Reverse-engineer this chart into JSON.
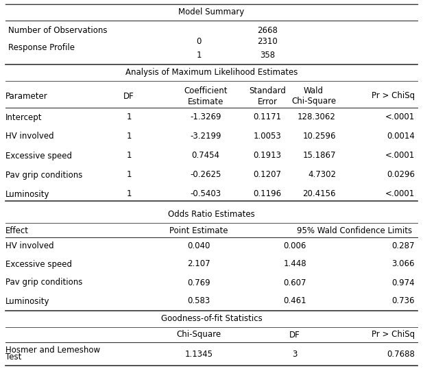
{
  "title": "Model Summary",
  "num_obs_label": "Number of Observations",
  "num_obs_val": "2668",
  "resp_profile_label": "Response Profile",
  "resp_row0_key": "0",
  "resp_row0_val": "2310",
  "resp_row1_key": "1",
  "resp_row1_val": "358",
  "section2_title": "Analysis of Maximum Likelihood Estimates",
  "section2_headers": [
    "Parameter",
    "DF",
    "Coefficient\nEstimate",
    "Standard\nError",
    "Wald\nChi-Square",
    "Pr > ChiSq"
  ],
  "section2_rows": [
    [
      "Intercept",
      "1",
      "-1.3269",
      "0.1171",
      "128.3062",
      "<.0001"
    ],
    [
      "HV involved",
      "1",
      "-3.2199",
      "1.0053",
      "10.2596",
      "0.0014"
    ],
    [
      "Excessive speed",
      "1",
      "0.7454",
      "0.1913",
      "15.1867",
      "<.0001"
    ],
    [
      "Pav grip conditions",
      "1",
      "-0.2625",
      "0.1207",
      "4.7302",
      "0.0296"
    ],
    [
      "Luminosity",
      "1",
      "-0.5403",
      "0.1196",
      "20.4156",
      "<.0001"
    ]
  ],
  "section3_title": "Odds Ratio Estimates",
  "section3_rows": [
    [
      "HV involved",
      "0.040",
      "0.006",
      "0.287"
    ],
    [
      "Excessive speed",
      "2.107",
      "1.448",
      "3.066"
    ],
    [
      "Pav grip conditions",
      "0.769",
      "0.607",
      "0.974"
    ],
    [
      "Luminosity",
      "0.583",
      "0.461",
      "0.736"
    ]
  ],
  "section4_title": "Goodness-of-fit Statistics",
  "hosmer_label1": "Hosmer and Lemeshow",
  "hosmer_label2": "Test",
  "hosmer_chisq": "1.1345",
  "hosmer_df": "3",
  "hosmer_pr": "0.7688",
  "bg_color": "#ffffff",
  "text_color": "#000000",
  "font_size": 8.5,
  "font_family": "DejaVu Sans"
}
